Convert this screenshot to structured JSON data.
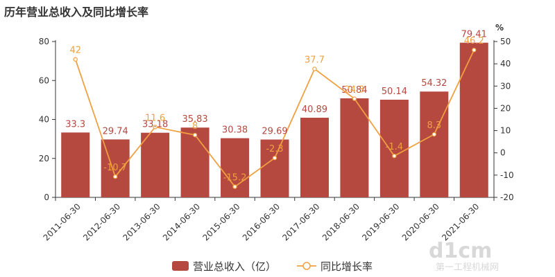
{
  "chart_data": {
    "type": "bar",
    "title": "历年营业总收入及同比增长率",
    "categories": [
      "2011-06-30",
      "2012-06-30",
      "2013-06-30",
      "2014-06-30",
      "2015-06-30",
      "2016-06-30",
      "2017-06-30",
      "2018-06-30",
      "2019-06-30",
      "2020-06-30",
      "2021-06-30"
    ],
    "series": [
      {
        "name": "营业总收入（亿）",
        "type": "bar",
        "axis": "left",
        "color": "#b5483f",
        "values": [
          33.3,
          29.74,
          33.18,
          35.83,
          30.38,
          29.69,
          40.89,
          50.84,
          50.14,
          54.32,
          79.41
        ],
        "labels": [
          "33.3",
          "29.74",
          "33.18",
          "35.83",
          "30.38",
          "29.69",
          "40.89",
          "50.84",
          "50.14",
          "54.32",
          "79.41"
        ]
      },
      {
        "name": "同比增长率",
        "type": "line",
        "axis": "right",
        "color": "#f0a040",
        "values": [
          42,
          -10.7,
          11.6,
          8,
          -15.2,
          -2.3,
          37.7,
          24.3,
          -1.4,
          8.3,
          46.2
        ],
        "labels": [
          "42",
          "-10.7",
          "11.6",
          "8",
          "-15.2",
          "-2.3",
          "37.7",
          "24.3",
          "-1.4",
          "8.3",
          "46.2"
        ]
      }
    ],
    "y_left": {
      "ylim": [
        0,
        80
      ],
      "ticks": [
        "0",
        "20",
        "40",
        "60",
        "80"
      ]
    },
    "y_right": {
      "ylim": [
        -20,
        50
      ],
      "unit": "%",
      "ticks": [
        "-20",
        "-10",
        "0",
        "10",
        "20",
        "30",
        "40",
        "50"
      ]
    },
    "legend": "bottom-center",
    "grid": false
  },
  "watermark": {
    "text": "d1cm",
    "sub": "第一工程机械网"
  }
}
